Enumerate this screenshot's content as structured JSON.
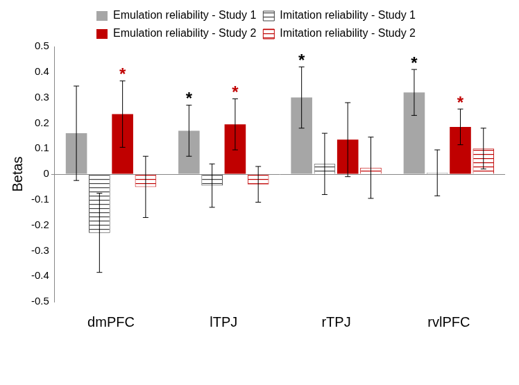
{
  "chart_data": {
    "type": "bar",
    "y_label": "Betas",
    "categories": [
      "dmPFC",
      "lTPJ",
      "rTPJ",
      "rvlPFC"
    ],
    "series": [
      {
        "name": "Emulation reliability - Study 1",
        "color": "#a6a6a6",
        "marker": "solid",
        "values": [
          0.16,
          0.17,
          0.3,
          0.32
        ],
        "errors": [
          0.185,
          0.1,
          0.12,
          0.09
        ]
      },
      {
        "name": "Imitation reliability - Study 1",
        "color": "#404040",
        "marker": "hatched",
        "values": [
          -0.23,
          -0.045,
          0.04,
          0.005
        ],
        "errors": [
          0.155,
          0.085,
          0.12,
          0.09
        ]
      },
      {
        "name": "Emulation reliability - Study 2",
        "color": "#c00000",
        "marker": "solid",
        "values": [
          0.235,
          0.195,
          0.135,
          0.185
        ],
        "errors": [
          0.13,
          0.1,
          0.145,
          0.07
        ]
      },
      {
        "name": "Imitation reliability - Study 2",
        "color": "#c00000",
        "marker": "hatched",
        "values": [
          -0.05,
          -0.04,
          0.025,
          0.1
        ],
        "errors": [
          0.12,
          0.07,
          0.12,
          0.08
        ]
      }
    ],
    "annotations": [
      {
        "text": "*",
        "category": "lTPJ",
        "series": "Emulation reliability - Study 1",
        "color": "#000000"
      },
      {
        "text": "*",
        "category": "rTPJ",
        "series": "Emulation reliability - Study 1",
        "color": "#000000"
      },
      {
        "text": "*",
        "category": "rvlPFC",
        "series": "Emulation reliability - Study 1",
        "color": "#000000"
      },
      {
        "text": "*",
        "category": "dmPFC",
        "series": "Emulation reliability - Study 2",
        "color": "#c00000"
      },
      {
        "text": "*",
        "category": "lTPJ",
        "series": "Emulation reliability - Study 2",
        "color": "#c00000"
      },
      {
        "text": "*",
        "category": "rvlPFC",
        "series": "Emulation reliability - Study 2",
        "color": "#c00000"
      }
    ],
    "ylim": [
      -0.5,
      0.5
    ],
    "yticks": [
      -0.5,
      -0.4,
      -0.3,
      -0.2,
      -0.1,
      0,
      0.1,
      0.2,
      0.3,
      0.4,
      0.5
    ],
    "grid": false,
    "legend": "top"
  }
}
